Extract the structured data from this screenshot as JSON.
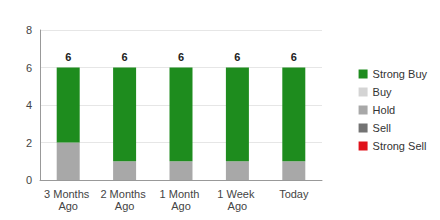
{
  "chart_data": {
    "type": "bar",
    "stacked": true,
    "categories": [
      "3 Months Ago",
      "2 Months Ago",
      "1 Month Ago",
      "1 Week Ago",
      "Today"
    ],
    "series": [
      {
        "name": "Strong Buy",
        "color": "#1e8c1e",
        "values": [
          4,
          5,
          5,
          5,
          5
        ]
      },
      {
        "name": "Buy",
        "color": "#d4d4d4",
        "values": [
          0,
          0,
          0,
          0,
          0
        ]
      },
      {
        "name": "Hold",
        "color": "#a8a8a8",
        "values": [
          2,
          1,
          1,
          1,
          1
        ]
      },
      {
        "name": "Sell",
        "color": "#737373",
        "values": [
          0,
          0,
          0,
          0,
          0
        ]
      },
      {
        "name": "Strong Sell",
        "color": "#e0121b",
        "values": [
          0,
          0,
          0,
          0,
          0
        ]
      }
    ],
    "totals": [
      6,
      6,
      6,
      6,
      6
    ],
    "ylim": [
      0,
      8
    ],
    "yticks": [
      0,
      2,
      4,
      6,
      8
    ],
    "grid": true,
    "legend": "right"
  }
}
